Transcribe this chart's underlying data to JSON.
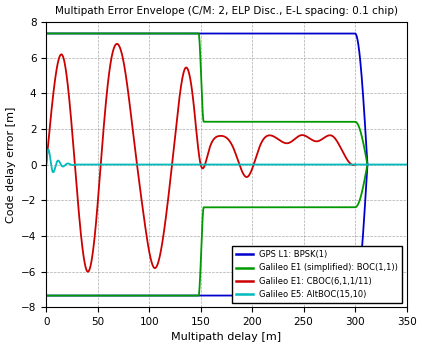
{
  "title": "Multipath Error Envelope (C/M: 2, ELP Disc., E-L spacing: 0.1 chip)",
  "xlabel": "Multipath delay [m]",
  "ylabel": "Code delay error [m]",
  "xlim": [
    0,
    350
  ],
  "ylim": [
    -8,
    8
  ],
  "xticks": [
    0,
    50,
    100,
    150,
    200,
    250,
    300,
    350
  ],
  "yticks": [
    -8,
    -6,
    -4,
    -2,
    0,
    2,
    4,
    6,
    8
  ],
  "colors": {
    "gps_l1": "#0000cc",
    "galileo_e1_simplified": "#009900",
    "galileo_e1_cboc": "#cc0000",
    "galileo_e5": "#00bbbb"
  },
  "legend": [
    "GPS L1: BPSK(1)",
    "Galileo E1 (simplified): BOC(1,1))",
    "Galileo E1: CBOC(6,1,1/11)",
    "Galileo E5: AltBOC(15,10)"
  ]
}
